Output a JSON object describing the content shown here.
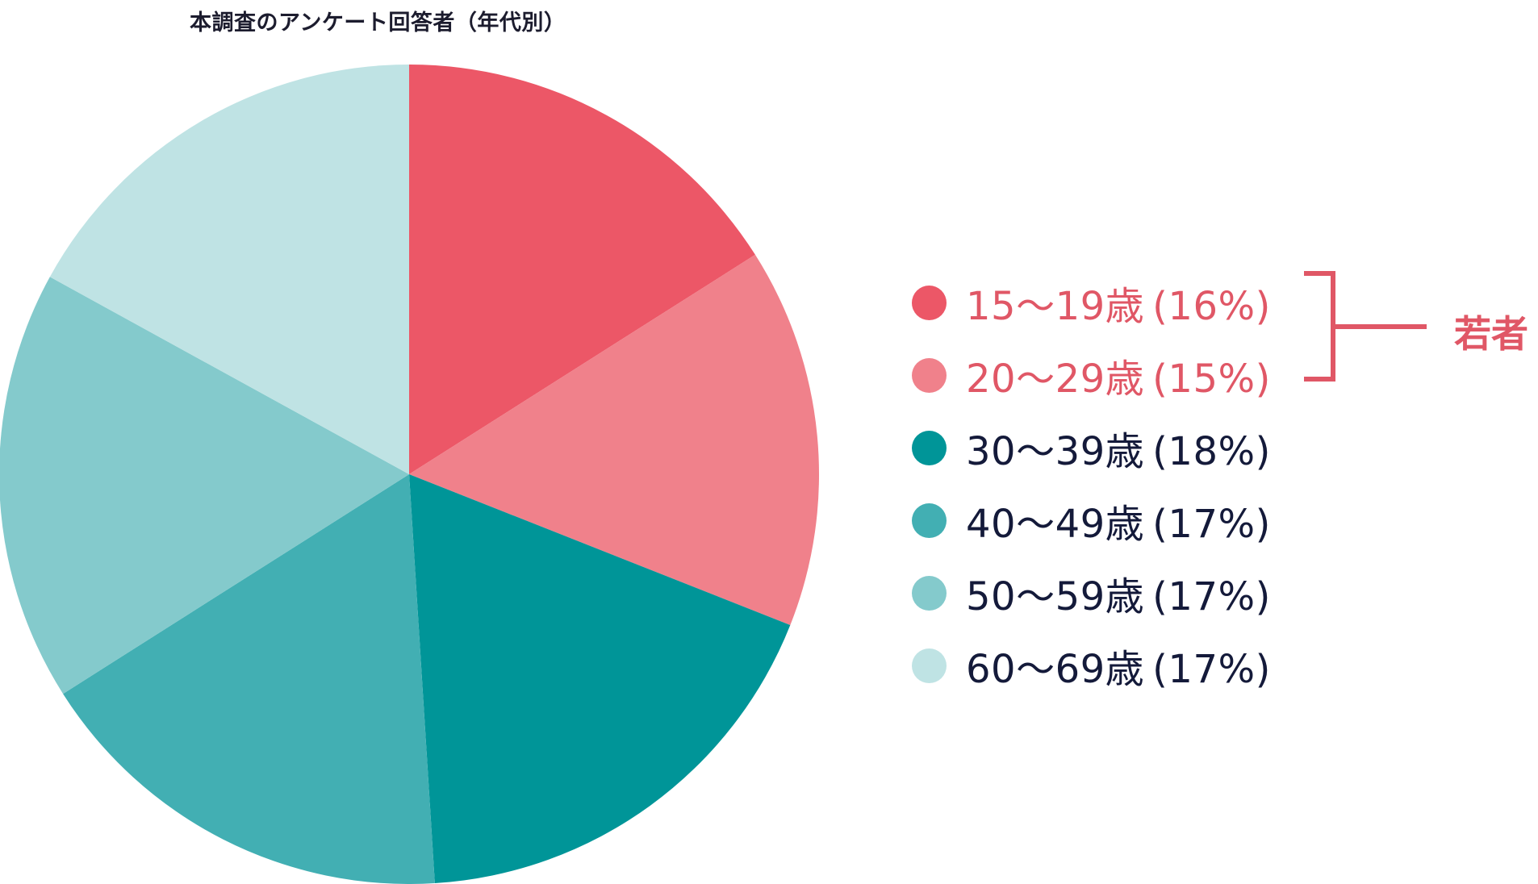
{
  "chart_data": {
    "type": "pie",
    "title": "本調査のアンケート回答者（年代別）",
    "slices": [
      {
        "label": "15〜19歳",
        "pct_label": "(16%)",
        "value": 16,
        "color": "#ec5767"
      },
      {
        "label": "20〜29歳",
        "pct_label": "(15%)",
        "value": 15,
        "color": "#f0818b"
      },
      {
        "label": "30〜39歳",
        "pct_label": "(18%)",
        "value": 18,
        "color": "#009598"
      },
      {
        "label": "40〜49歳",
        "pct_label": "(17%)",
        "value": 17,
        "color": "#42afb3"
      },
      {
        "label": "50〜59歳",
        "pct_label": "(17%)",
        "value": 17,
        "color": "#84cacc"
      },
      {
        "label": "60〜69歳",
        "pct_label": "(17%)",
        "value": 17,
        "color": "#bfe3e4"
      }
    ],
    "highlight_group": {
      "label": "若者",
      "members": [
        "15〜19歳",
        "20〜29歳"
      ],
      "color": "#e05766"
    },
    "legend_position": "right",
    "start_angle": "12 o'clock",
    "direction": "clockwise"
  }
}
